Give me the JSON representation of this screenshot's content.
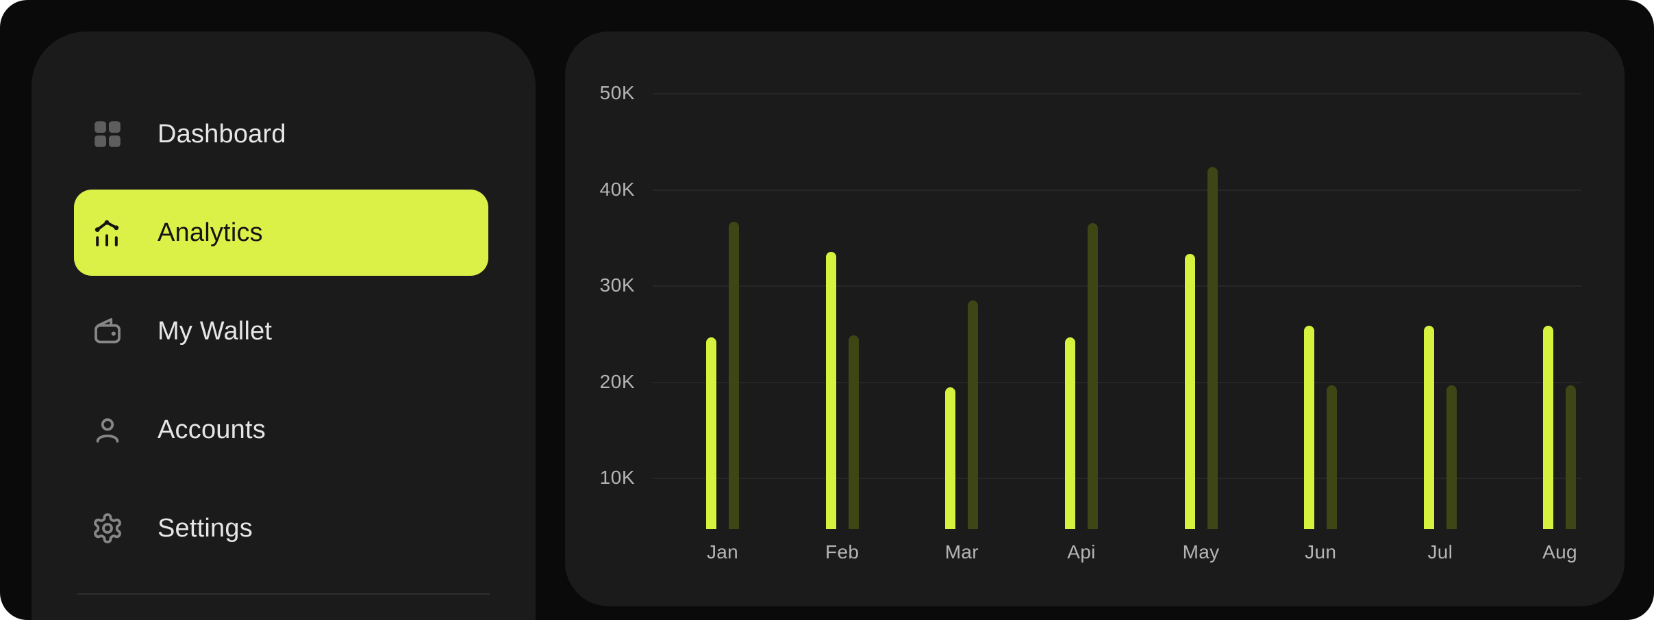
{
  "sidebar": {
    "items": [
      {
        "label": "Dashboard",
        "icon": "grid-icon",
        "active": false
      },
      {
        "label": "Analytics",
        "icon": "analytics-chart-icon",
        "active": true
      },
      {
        "label": "My Wallet",
        "icon": "wallet-icon",
        "active": false
      },
      {
        "label": "Accounts",
        "icon": "user-icon",
        "active": false
      },
      {
        "label": "Settings",
        "icon": "gear-icon",
        "active": false
      }
    ],
    "active_item": "Analytics"
  },
  "chart_data": {
    "type": "bar",
    "title": "",
    "xlabel": "",
    "ylabel": "",
    "categories": [
      "Jan",
      "Feb",
      "Mar",
      "Api",
      "May",
      "Jun",
      "Jul",
      "Aug"
    ],
    "series": [
      {
        "name": "primary",
        "color": "#d6f23e",
        "values": [
          24600,
          33500,
          19400,
          24600,
          33300,
          25800,
          25800,
          25800
        ]
      },
      {
        "name": "secondary",
        "color": "#3d4614",
        "values": [
          36600,
          24800,
          28400,
          36500,
          42300,
          19600,
          19600,
          19600
        ]
      }
    ],
    "ytick_labels": [
      "50K",
      "40K",
      "30K",
      "20K",
      "10K"
    ],
    "ytick_values": [
      50000,
      40000,
      30000,
      20000,
      10000
    ],
    "ylim": [
      0,
      50000
    ],
    "grid": "horizontal",
    "legend": false
  },
  "colors": {
    "page_background": "#ffffff",
    "canvas_background": "#0a0a0a",
    "card_background": "#1b1b1b",
    "accent_lime": "#dcf148",
    "bar_primary": "#d6f23e",
    "bar_secondary": "#3d4614",
    "text_primary": "#e6e6e6",
    "text_active": "#141414",
    "axis_text": "#b5b5b5",
    "gridline": "#262626",
    "divider": "#2e2e2e",
    "icon_gray": "#878787"
  }
}
